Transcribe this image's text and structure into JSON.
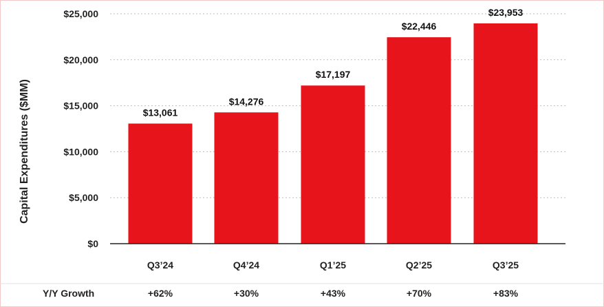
{
  "chart_data": {
    "type": "bar",
    "title": "",
    "xlabel": "",
    "ylabel": "Capital Expenditures ($MM)",
    "ylim": [
      0,
      25000
    ],
    "yticks": [
      0,
      5000,
      10000,
      15000,
      20000,
      25000
    ],
    "ytick_labels": [
      "$0",
      "$5,000",
      "$10,000",
      "$15,000",
      "$20,000",
      "$25,000"
    ],
    "grid": true,
    "categories": [
      "Q3’24",
      "Q4’24",
      "Q1’25",
      "Q2’25",
      "Q3’25"
    ],
    "values": [
      13061,
      14276,
      17197,
      22446,
      23953
    ],
    "value_labels": [
      "$13,061",
      "$14,276",
      "$17,197",
      "$22,446",
      "$23,953"
    ],
    "bar_color": "#e8141c",
    "growth_row_label": "Y/Y Growth",
    "growth": [
      "+62%",
      "+30%",
      "+43%",
      "+70%",
      "+83%"
    ]
  }
}
